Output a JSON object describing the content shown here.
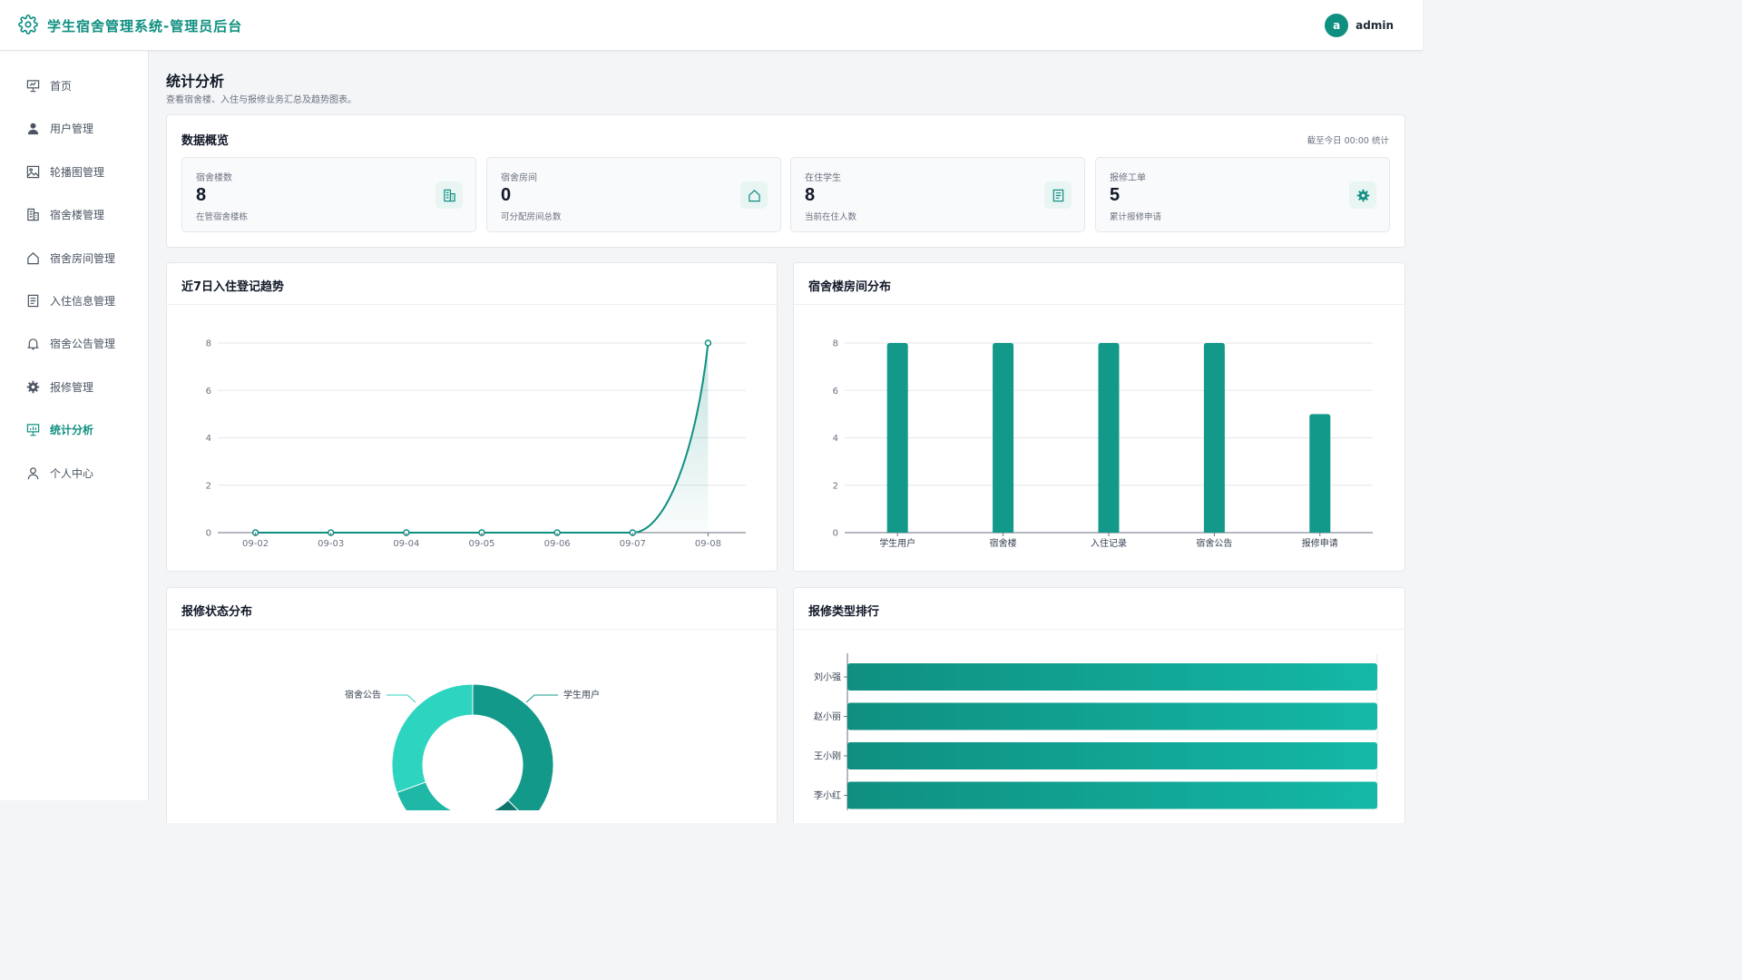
{
  "header": {
    "title": "学生宿舍管理系统-管理员后台",
    "avatar_letter": "a",
    "username": "admin"
  },
  "sidebar": {
    "items": [
      {
        "label": "首页",
        "icon": "presentation-icon"
      },
      {
        "label": "用户管理",
        "icon": "user-icon"
      },
      {
        "label": "轮播图管理",
        "icon": "image-icon"
      },
      {
        "label": "宿舍楼管理",
        "icon": "building-icon"
      },
      {
        "label": "宿舍房间管理",
        "icon": "house-icon"
      },
      {
        "label": "入住信息管理",
        "icon": "document-icon"
      },
      {
        "label": "宿舍公告管理",
        "icon": "bell-icon"
      },
      {
        "label": "报修管理",
        "icon": "gear-icon"
      },
      {
        "label": "统计分析",
        "icon": "chart-board-icon",
        "active": true
      },
      {
        "label": "个人中心",
        "icon": "person-icon"
      }
    ]
  },
  "page": {
    "title": "统计分析",
    "subtitle": "查看宿舍楼、入住与报修业务汇总及趋势图表。"
  },
  "overview": {
    "title": "数据概览",
    "note": "截至今日 00:00 统计",
    "stats": [
      {
        "label": "宿舍楼数",
        "value": "8",
        "desc": "在管宿舍楼栋",
        "icon": "building-icon"
      },
      {
        "label": "宿舍房间",
        "value": "0",
        "desc": "可分配房间总数",
        "icon": "house-icon"
      },
      {
        "label": "在住学生",
        "value": "8",
        "desc": "当前在住人数",
        "icon": "document-icon"
      },
      {
        "label": "报修工单",
        "value": "5",
        "desc": "累计报修申请",
        "icon": "gear-icon"
      }
    ]
  },
  "colors": {
    "accent": "#0f8f80",
    "bar": "#12998a",
    "donut_light": "#2dd4bf",
    "donut_dark": "#0f766e"
  },
  "charts": {
    "trend_title": "近7日入住登记趋势",
    "dist_title": "宿舍楼房间分布",
    "status_title": "报修状态分布",
    "rank_title": "报修类型排行"
  },
  "chart_data": [
    {
      "type": "line",
      "x": [
        "09-02",
        "09-03",
        "09-04",
        "09-05",
        "09-06",
        "09-07",
        "09-08"
      ],
      "series": [
        {
          "values": [
            0,
            0,
            0,
            0,
            0,
            0,
            8
          ]
        }
      ],
      "ylim": [
        0,
        8
      ],
      "yticks": [
        0,
        2,
        4,
        6,
        8
      ],
      "grid": true,
      "area_fill": true
    },
    {
      "type": "bar",
      "categories": [
        "学生用户",
        "宿舍楼",
        "入住记录",
        "宿舍公告",
        "报修申请"
      ],
      "values": [
        8,
        8,
        8,
        8,
        5
      ],
      "ylim": [
        0,
        8
      ],
      "yticks": [
        0,
        2,
        4,
        6,
        8
      ],
      "grid": true
    },
    {
      "type": "pie",
      "style": "donut",
      "labels": [
        "学生用户",
        "宿舍公告"
      ]
    },
    {
      "type": "bar",
      "orientation": "horizontal",
      "categories": [
        "刘小强",
        "赵小丽",
        "王小刚",
        "李小红"
      ]
    }
  ]
}
